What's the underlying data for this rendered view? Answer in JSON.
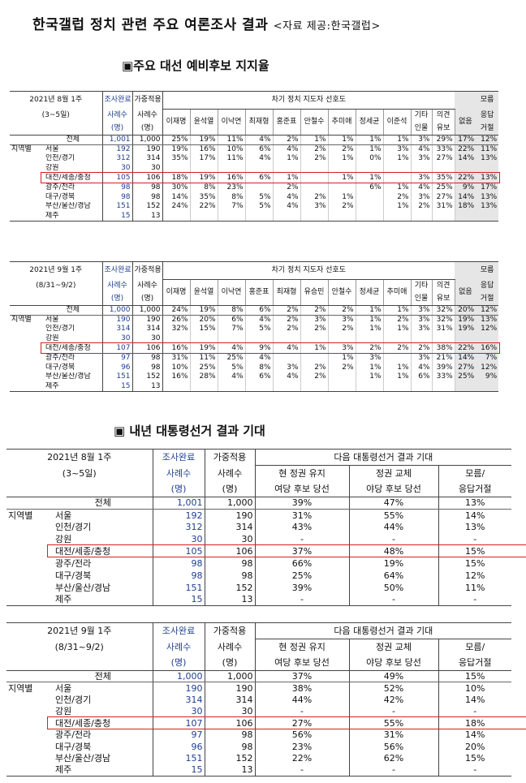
{
  "title": "한국갤럽 정치 관련 주요 여론조사 결과",
  "source": "<자료 제공:한국갤럽>",
  "section1": "▣주요 대선 예비후보 지지율",
  "section2": "▣ 내년 대통령선거 결과 기대",
  "common": {
    "done": "조사완료",
    "weighted": "가중적용",
    "count": "사례수",
    "unit": "(명)",
    "region": "지역별"
  },
  "t1": {
    "wave": "2021년 8월 1주",
    "period": "(3~5일)",
    "group_header": "차기 정치 지도자 선호도",
    "candidates": [
      "이재명",
      "윤석열",
      "이낙연",
      "최재형",
      "홍준표",
      "안철수",
      "추미애",
      "정세균",
      "이준석"
    ],
    "other_a": "기타",
    "other_b": "인물",
    "undecided_a": "의견",
    "undecided_b": "유보",
    "none": "없음",
    "dk_a": "모름",
    "dk_b": "응답",
    "dk_c": "거절",
    "rows": [
      {
        "label": "전체",
        "n": "1,001",
        "w": "1,000",
        "c": [
          "25%",
          "19%",
          "11%",
          "4%",
          "2%",
          "1%",
          "1%",
          "1%",
          "1%"
        ],
        "o": "3%",
        "u": "29%",
        "x": "17%",
        "d": "12%"
      },
      {
        "label": "서울",
        "n": "192",
        "w": "190",
        "c": [
          "19%",
          "16%",
          "10%",
          "6%",
          "4%",
          "2%",
          "2%",
          "1%",
          "3%"
        ],
        "o": "4%",
        "u": "33%",
        "x": "22%",
        "d": "11%"
      },
      {
        "label": "인천/경기",
        "n": "312",
        "w": "314",
        "c": [
          "35%",
          "17%",
          "11%",
          "4%",
          "1%",
          "2%",
          "1%",
          "0%",
          "1%"
        ],
        "o": "3%",
        "u": "27%",
        "x": "14%",
        "d": "13%"
      },
      {
        "label": "강원",
        "n": "30",
        "w": "30",
        "c": [
          "",
          "",
          "",
          "",
          "",
          "",
          "",
          "",
          ""
        ],
        "o": "",
        "u": "",
        "x": "",
        "d": ""
      },
      {
        "label": "대전/세종/충청",
        "n": "105",
        "w": "106",
        "c": [
          "18%",
          "19%",
          "16%",
          "6%",
          "1%",
          "",
          "1%",
          "1%",
          ""
        ],
        "o": "3%",
        "u": "35%",
        "x": "22%",
        "d": "13%"
      },
      {
        "label": "광주/전라",
        "n": "98",
        "w": "98",
        "c": [
          "30%",
          "8%",
          "23%",
          "",
          "2%",
          "",
          "",
          "6%",
          "1%"
        ],
        "o": "4%",
        "u": "25%",
        "x": "9%",
        "d": "17%"
      },
      {
        "label": "대구/경북",
        "n": "98",
        "w": "98",
        "c": [
          "14%",
          "35%",
          "8%",
          "5%",
          "4%",
          "2%",
          "1%",
          "",
          "2%"
        ],
        "o": "3%",
        "u": "27%",
        "x": "14%",
        "d": "13%"
      },
      {
        "label": "부산/울산/경남",
        "n": "151",
        "w": "152",
        "c": [
          "24%",
          "22%",
          "7%",
          "5%",
          "4%",
          "3%",
          "2%",
          "",
          "1%"
        ],
        "o": "2%",
        "u": "31%",
        "x": "18%",
        "d": "13%"
      },
      {
        "label": "제주",
        "n": "15",
        "w": "13",
        "c": [
          "",
          "",
          "",
          "",
          "",
          "",
          "",
          "",
          ""
        ],
        "o": "",
        "u": "",
        "x": "",
        "d": ""
      }
    ]
  },
  "t2": {
    "wave": "2021년 9월 1주",
    "period": "(8/31~9/2)",
    "group_header": "차기 정치 지도자 선호도",
    "candidates": [
      "이재명",
      "윤석열",
      "이낙연",
      "홍준표",
      "최재형",
      "유승민",
      "안철수",
      "정세균",
      "추미애"
    ],
    "other_a": "기타",
    "other_b": "인물",
    "undecided_a": "의견",
    "undecided_b": "유보",
    "none": "없음",
    "dk_a": "모름",
    "dk_b": "응답",
    "dk_c": "거절",
    "rows": [
      {
        "label": "전체",
        "n": "1,000",
        "w": "1,000",
        "c": [
          "24%",
          "19%",
          "8%",
          "6%",
          "2%",
          "2%",
          "2%",
          "1%",
          "1%"
        ],
        "o": "3%",
        "u": "32%",
        "x": "20%",
        "d": "12%"
      },
      {
        "label": "서울",
        "n": "190",
        "w": "190",
        "c": [
          "26%",
          "20%",
          "6%",
          "4%",
          "2%",
          "3%",
          "3%",
          "1%",
          "2%"
        ],
        "o": "3%",
        "u": "32%",
        "x": "19%",
        "d": "13%"
      },
      {
        "label": "인천/경기",
        "n": "314",
        "w": "314",
        "c": [
          "32%",
          "15%",
          "7%",
          "5%",
          "2%",
          "2%",
          "2%",
          "1%",
          "1%"
        ],
        "o": "3%",
        "u": "31%",
        "x": "19%",
        "d": "12%"
      },
      {
        "label": "강원",
        "n": "30",
        "w": "30",
        "c": [
          "",
          "",
          "",
          "",
          "",
          "",
          "",
          "",
          ""
        ],
        "o": "",
        "u": "",
        "x": "",
        "d": ""
      },
      {
        "label": "대전/세종/충청",
        "n": "107",
        "w": "106",
        "c": [
          "16%",
          "19%",
          "4%",
          "9%",
          "4%",
          "1%",
          "3%",
          "2%",
          "2%"
        ],
        "o": "2%",
        "u": "38%",
        "x": "22%",
        "d": "16%"
      },
      {
        "label": "광주/전라",
        "n": "97",
        "w": "98",
        "c": [
          "31%",
          "11%",
          "25%",
          "4%",
          "",
          "",
          "1%",
          "3%",
          ""
        ],
        "o": "3%",
        "u": "21%",
        "x": "14%",
        "d": "7%"
      },
      {
        "label": "대구/경북",
        "n": "96",
        "w": "98",
        "c": [
          "10%",
          "25%",
          "5%",
          "8%",
          "3%",
          "2%",
          "2%",
          "1%",
          "1%"
        ],
        "o": "4%",
        "u": "39%",
        "x": "27%",
        "d": "12%"
      },
      {
        "label": "부산/울산/경남",
        "n": "151",
        "w": "152",
        "c": [
          "16%",
          "28%",
          "4%",
          "6%",
          "4%",
          "2%",
          "",
          "1%",
          "1%"
        ],
        "o": "6%",
        "u": "33%",
        "x": "25%",
        "d": "9%"
      },
      {
        "label": "제주",
        "n": "15",
        "w": "13",
        "c": [
          "",
          "",
          "",
          "",
          "",
          "",
          "",
          "",
          ""
        ],
        "o": "",
        "u": "",
        "x": "",
        "d": ""
      }
    ]
  },
  "t3": {
    "wave": "2021년 8월 1주",
    "period": "(3~5일)",
    "group_header": "다음 대통령선거 결과 기대",
    "col1_a": "현 정권 유지",
    "col1_b": "여당 후보 당선",
    "col2_a": "정권 교체",
    "col2_b": "야당 후보 당선",
    "col3_a": "모름/",
    "col3_b": "응답거절",
    "rows": [
      {
        "label": "전체",
        "n": "1,001",
        "w": "1,000",
        "a": "39%",
        "b": "47%",
        "d": "13%"
      },
      {
        "label": "서울",
        "n": "192",
        "w": "190",
        "a": "31%",
        "b": "55%",
        "d": "14%"
      },
      {
        "label": "인천/경기",
        "n": "312",
        "w": "314",
        "a": "43%",
        "b": "44%",
        "d": "13%"
      },
      {
        "label": "강원",
        "n": "30",
        "w": "30",
        "a": "-",
        "b": "-",
        "d": "-"
      },
      {
        "label": "대전/세종/충청",
        "n": "105",
        "w": "106",
        "a": "37%",
        "b": "48%",
        "d": "15%"
      },
      {
        "label": "광주/전라",
        "n": "98",
        "w": "98",
        "a": "66%",
        "b": "19%",
        "d": "15%"
      },
      {
        "label": "대구/경북",
        "n": "98",
        "w": "98",
        "a": "25%",
        "b": "64%",
        "d": "12%"
      },
      {
        "label": "부산/울산/경남",
        "n": "151",
        "w": "152",
        "a": "39%",
        "b": "50%",
        "d": "11%"
      },
      {
        "label": "제주",
        "n": "15",
        "w": "13",
        "a": "-",
        "b": "-",
        "d": "-"
      }
    ]
  },
  "t4": {
    "wave": "2021년 9월 1주",
    "period": "(8/31~9/2)",
    "group_header": "다음 대통령선거 결과 기대",
    "col1_a": "현 정권 유지",
    "col1_b": "여당 후보 당선",
    "col2_a": "정권 교체",
    "col2_b": "야당 후보 당선",
    "col3_a": "모름/",
    "col3_b": "응답거절",
    "rows": [
      {
        "label": "전체",
        "n": "1,000",
        "w": "1,000",
        "a": "37%",
        "b": "49%",
        "d": "15%"
      },
      {
        "label": "서울",
        "n": "190",
        "w": "190",
        "a": "38%",
        "b": "52%",
        "d": "10%"
      },
      {
        "label": "인천/경기",
        "n": "314",
        "w": "314",
        "a": "44%",
        "b": "42%",
        "d": "14%"
      },
      {
        "label": "강원",
        "n": "30",
        "w": "30",
        "a": "-",
        "b": "-",
        "d": "-"
      },
      {
        "label": "대전/세종/충청",
        "n": "107",
        "w": "106",
        "a": "27%",
        "b": "55%",
        "d": "18%"
      },
      {
        "label": "광주/전라",
        "n": "97",
        "w": "98",
        "a": "56%",
        "b": "31%",
        "d": "14%"
      },
      {
        "label": "대구/경북",
        "n": "96",
        "w": "98",
        "a": "23%",
        "b": "56%",
        "d": "20%"
      },
      {
        "label": "부산/울산/경남",
        "n": "151",
        "w": "152",
        "a": "22%",
        "b": "62%",
        "d": "15%"
      },
      {
        "label": "제주",
        "n": "15",
        "w": "13",
        "a": "-",
        "b": "-",
        "d": "-"
      }
    ]
  }
}
